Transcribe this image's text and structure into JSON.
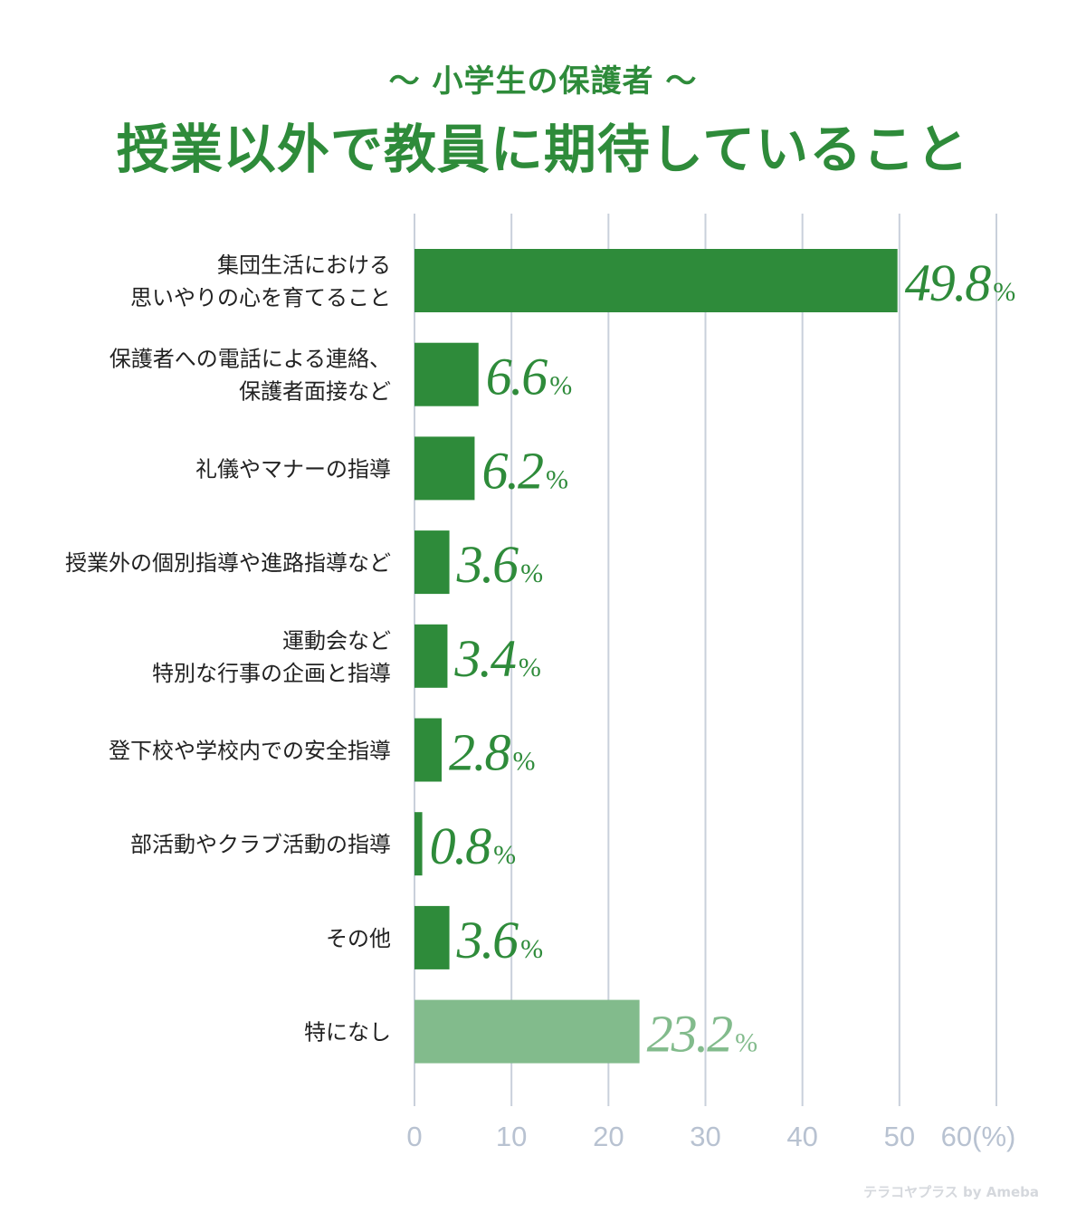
{
  "header": {
    "subtitle": "〜 小学生の保護者 〜",
    "title": "授業以外で教員に期待していること"
  },
  "chart_data": {
    "type": "bar",
    "orientation": "horizontal",
    "categories": [
      [
        "集団生活における",
        "思いやりの心を育てること"
      ],
      [
        "保護者への電話による連絡、",
        "保護者面接など"
      ],
      [
        "礼儀やマナーの指導"
      ],
      [
        "授業外の個別指導や進路指導など"
      ],
      [
        "運動会など",
        "特別な行事の企画と指導"
      ],
      [
        "登下校や学校内での安全指導"
      ],
      [
        "部活動やクラブ活動の指導"
      ],
      [
        "その他"
      ],
      [
        "特になし"
      ]
    ],
    "values": [
      49.8,
      6.6,
      6.2,
      3.6,
      3.4,
      2.8,
      0.8,
      3.6,
      23.2
    ],
    "value_labels": [
      "49.8",
      "6.6",
      "6.2",
      "3.6",
      "3.4",
      "2.8",
      "0.8",
      "3.6",
      "23.2"
    ],
    "value_unit": "%",
    "xlim": [
      0,
      60
    ],
    "xticks": [
      "0",
      "10",
      "20",
      "30",
      "40",
      "50",
      "60(%)"
    ],
    "grid": true,
    "colors": {
      "bar": "#2e8b3a",
      "bar_highlight_last": "#82bb8c",
      "grid": "#c9d0db",
      "tick": "#b8c2d1",
      "label": "#222222"
    }
  },
  "footer": {
    "watermark": "テラコヤプラス by Ameba"
  }
}
